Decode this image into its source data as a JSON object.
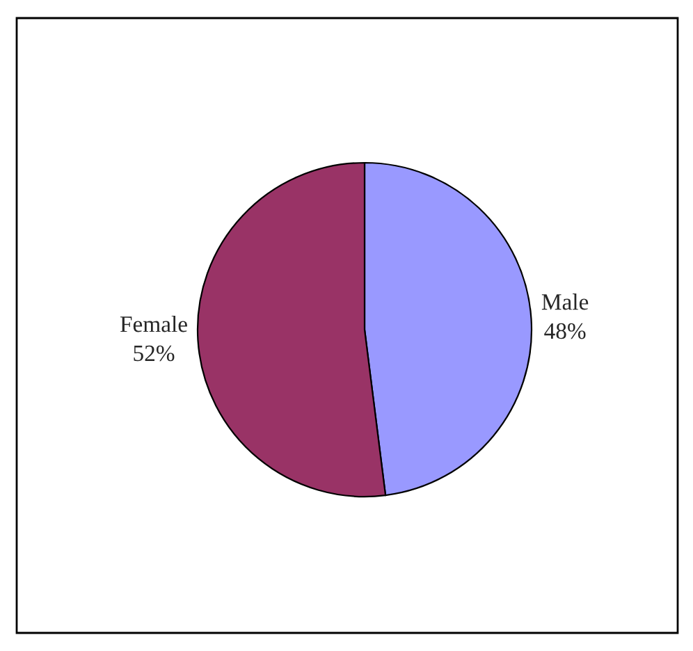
{
  "chart_data": {
    "type": "pie",
    "categories": [
      "Male",
      "Female"
    ],
    "values": [
      48,
      52
    ],
    "value_labels": [
      "48%",
      "52%"
    ],
    "colors": [
      "#9999ff",
      "#993366"
    ],
    "legend": false
  }
}
